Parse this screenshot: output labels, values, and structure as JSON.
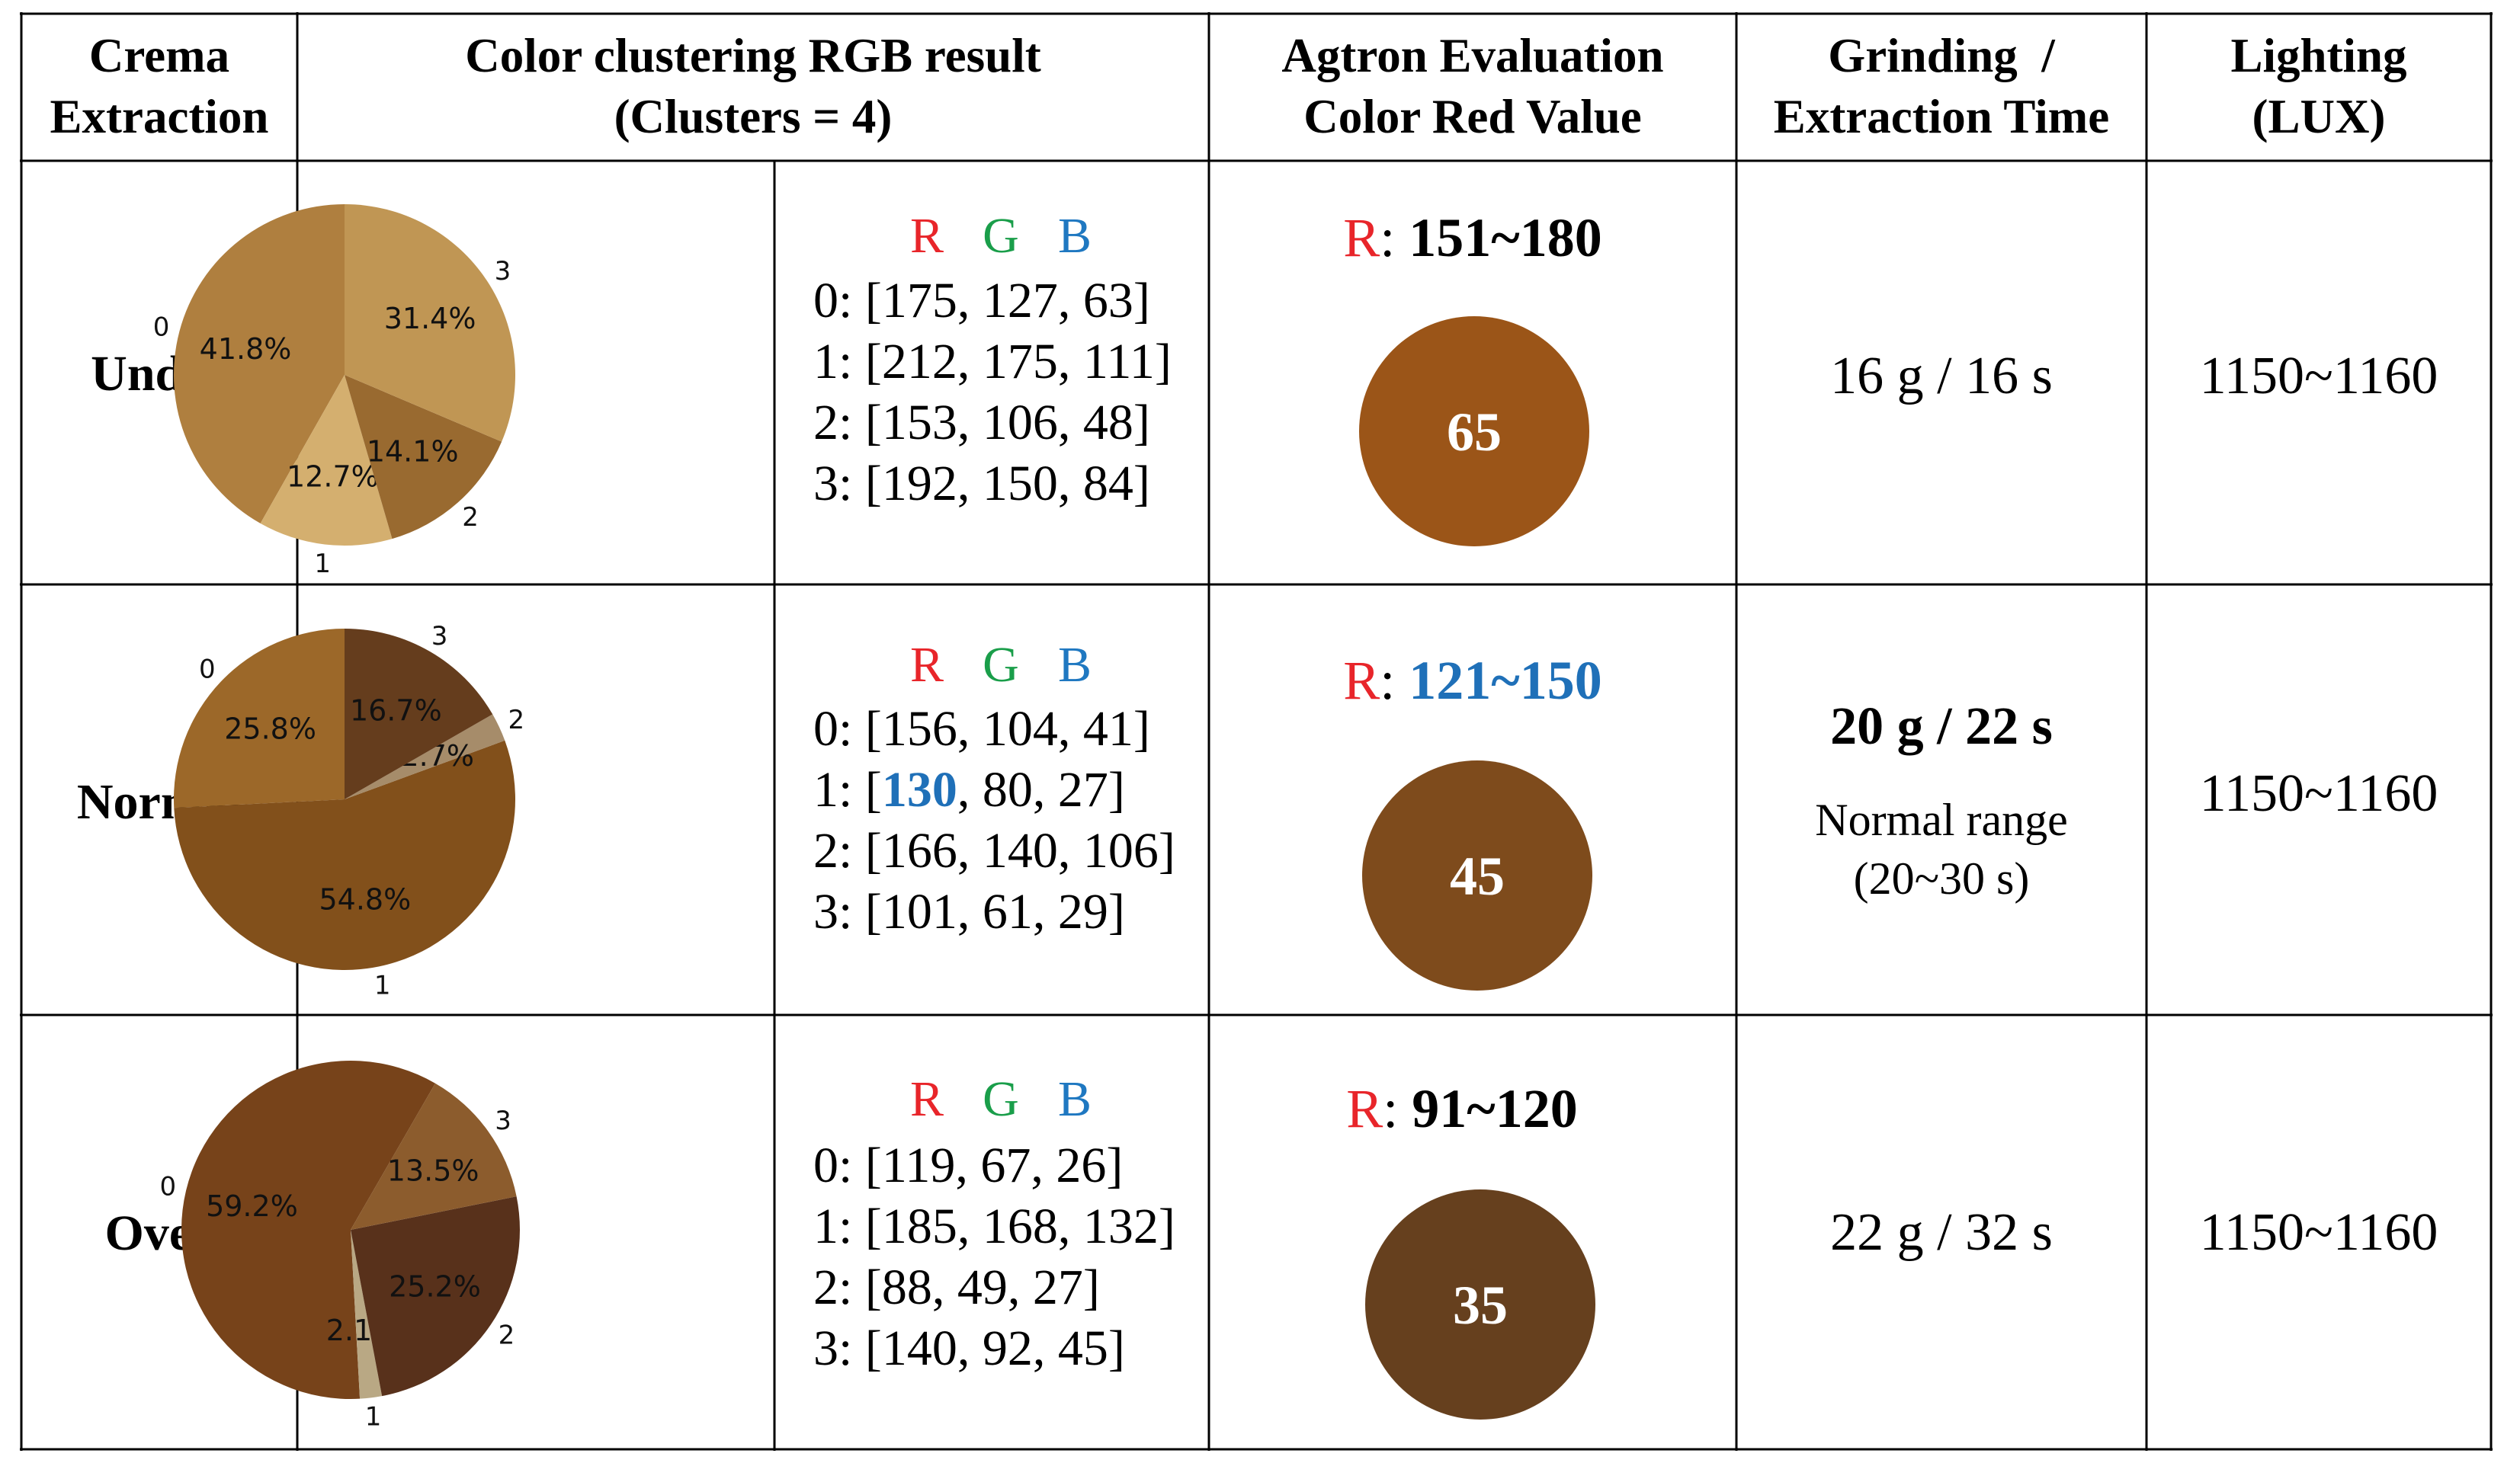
{
  "headers": {
    "col1": [
      "Crema",
      "Extraction"
    ],
    "col2": [
      "Color clustering RGB result",
      "(Clusters = 4)"
    ],
    "col3": [
      "Agtron Evaluation",
      "Color Red Value"
    ],
    "col4": [
      "Grinding  /",
      "Extraction Time"
    ],
    "col5": [
      "Lighting",
      "(LUX)"
    ]
  },
  "rgb_header": {
    "r": "R",
    "g": "G",
    "b": "B"
  },
  "colors": {
    "r": "#e8252a",
    "g": "#1a9e4a",
    "b": "#1f78c1",
    "highlight": "#1f70b8"
  },
  "rows": [
    {
      "label": "Under",
      "rgb_lines": [
        "0: [175, 127, 63]",
        "1: [212, 175, 111]",
        "2: [153, 106, 48]",
        "3: [192, 150, 84]"
      ],
      "red_prefix": "R",
      "red_sep": ": ",
      "red_range": "151~180",
      "agtron": "65",
      "agtron_color": "#9b5518",
      "grind_lines": [
        "16 g / 16 s"
      ],
      "lux": "1150~1160"
    },
    {
      "label": "Normal",
      "rgb_lines": [
        "0: [156, 104, 41]",
        "1: [130, 80, 27]",
        "2: [166, 140, 106]",
        "3: [101, 61, 29]"
      ],
      "rgb_highlight": {
        "prefix": "1: [",
        "value": "130",
        "suffix": ", 80, 27]"
      },
      "red_prefix": "R",
      "red_sep": ": ",
      "red_range": "121~150",
      "agtron": "45",
      "agtron_color": "#7e4b1c",
      "grind_lines": [
        "20 g / 22 s",
        "Normal range",
        "(20~30 s)"
      ],
      "lux": "1150~1160"
    },
    {
      "label": "Over",
      "rgb_lines": [
        "0: [119, 67, 26]",
        "1: [185, 168, 132]",
        "2: [88, 49, 27]",
        "3: [140, 92, 45]"
      ],
      "red_prefix": "R",
      "red_sep": ": ",
      "red_range": "91~120",
      "agtron": "35",
      "agtron_color": "#66401e",
      "grind_lines": [
        "22 g / 32 s"
      ],
      "lux": "1150~1160"
    }
  ],
  "chart_data": [
    {
      "type": "pie",
      "labels": [
        "0",
        "1",
        "2",
        "3"
      ],
      "values": [
        41.8,
        12.7,
        14.1,
        31.4
      ],
      "value_labels": [
        "41.8%",
        "12.7%",
        "14.1%",
        "31.4%"
      ],
      "colors": [
        "#af7f3f",
        "#d4af6f",
        "#996a30",
        "#c09654"
      ]
    },
    {
      "type": "pie",
      "labels": [
        "0",
        "1",
        "2",
        "3"
      ],
      "values": [
        25.8,
        54.8,
        2.7,
        16.7
      ],
      "value_labels": [
        "25.8%",
        "54.8%",
        "2.7%",
        "16.7%"
      ],
      "colors": [
        "#9c6829",
        "#82501b",
        "#a68c6a",
        "#653d1d"
      ]
    },
    {
      "type": "pie",
      "labels": [
        "0",
        "1",
        "2",
        "3"
      ],
      "values": [
        59.2,
        2.1,
        25.2,
        13.5
      ],
      "value_labels": [
        "59.2%",
        "2.1%",
        "25.2%",
        "13.5%"
      ],
      "colors": [
        "#77431a",
        "#b9a884",
        "#58311b",
        "#8c5c2d"
      ]
    }
  ]
}
